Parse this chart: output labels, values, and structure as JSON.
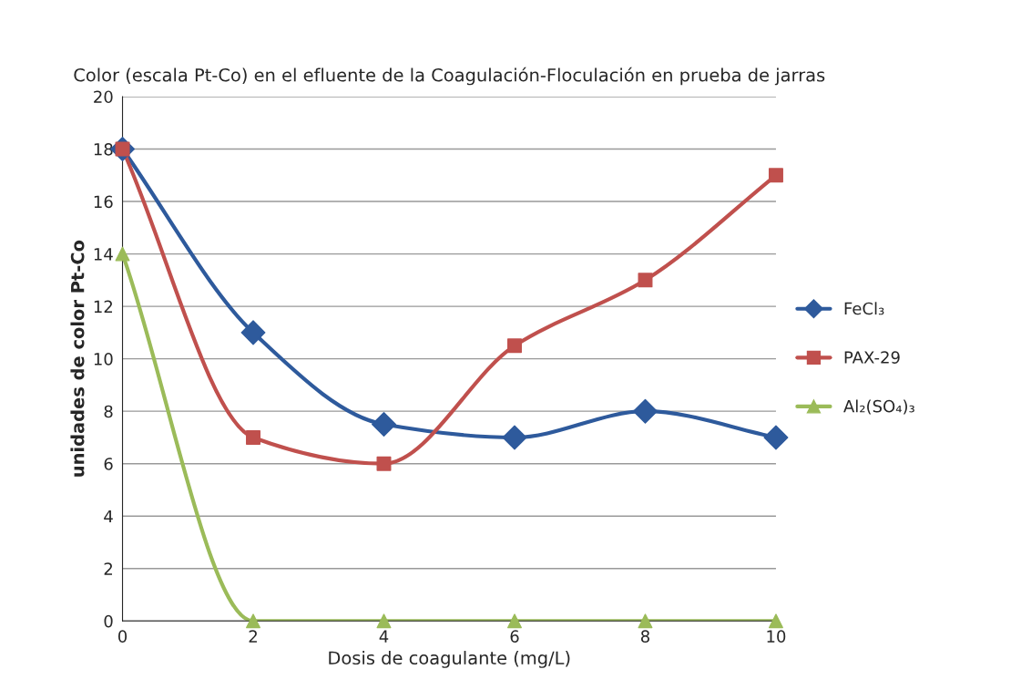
{
  "chart_data": {
    "type": "line",
    "title": "Color (escala Pt-Co) en el efluente de la Coagulación-Floculación en prueba de jarras",
    "xlabel": "Dosis de coagulante (mg/L)",
    "ylabel": "unidades de color Pt-Co",
    "x": [
      0,
      2,
      4,
      6,
      8,
      10
    ],
    "series": [
      {
        "name": "FeCl₃",
        "color": "#2e5a9c",
        "marker": "diamond",
        "values": [
          18,
          11,
          7.5,
          7,
          8,
          7
        ]
      },
      {
        "name": "PAX-29",
        "color": "#c0504d",
        "marker": "square",
        "values": [
          18,
          7,
          6,
          10.5,
          13,
          17
        ]
      },
      {
        "name": "Al₂(SO₄)₃",
        "color": "#9bbb59",
        "marker": "triangle",
        "values": [
          14,
          0,
          0,
          0,
          0,
          0
        ]
      }
    ],
    "xlim": [
      0,
      10
    ],
    "xticks": [
      0,
      2,
      4,
      6,
      8,
      10
    ],
    "ylim": [
      0,
      20
    ],
    "yticks": [
      0,
      2,
      4,
      6,
      8,
      10,
      12,
      14,
      16,
      18,
      20
    ],
    "grid": "y",
    "legend": "right"
  }
}
